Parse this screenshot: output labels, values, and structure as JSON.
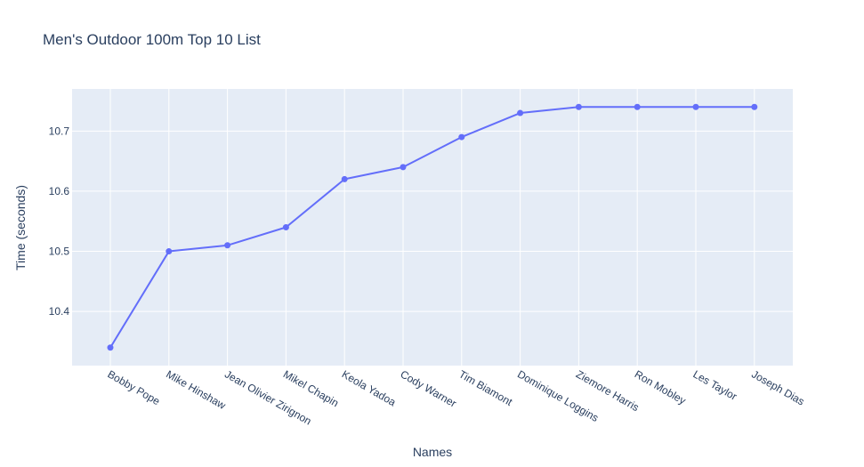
{
  "chart_data": {
    "type": "line",
    "title": "Men's Outdoor 100m Top 10 List",
    "xlabel": "Names",
    "ylabel": "Time (seconds)",
    "categories": [
      "Bobby Pope",
      "Mike Hinshaw",
      "Jean Olivier Zirignon",
      "Mikel Chapin",
      "Keola Yadoa",
      "Cody Warner",
      "Tim Biamont",
      "Dominique Loggins",
      "Ziemore Harris",
      "Ron Mobley",
      "Les Taylor",
      "Joseph Dias"
    ],
    "series": [
      {
        "values": [
          10.34,
          10.5,
          10.51,
          10.54,
          10.62,
          10.64,
          10.69,
          10.73,
          10.74,
          10.74,
          10.74,
          10.74
        ]
      }
    ],
    "ylim": [
      10.31,
      10.77
    ],
    "yticks": [
      10.4,
      10.5,
      10.6,
      10.7
    ],
    "ytick_labels": [
      "10.4",
      "10.5",
      "10.6",
      "10.7"
    ],
    "grid": true,
    "colors": {
      "line": "#636efa",
      "plot_bg": "#e5ecf6",
      "grid": "#ffffff",
      "text": "#2a3f5f"
    }
  }
}
